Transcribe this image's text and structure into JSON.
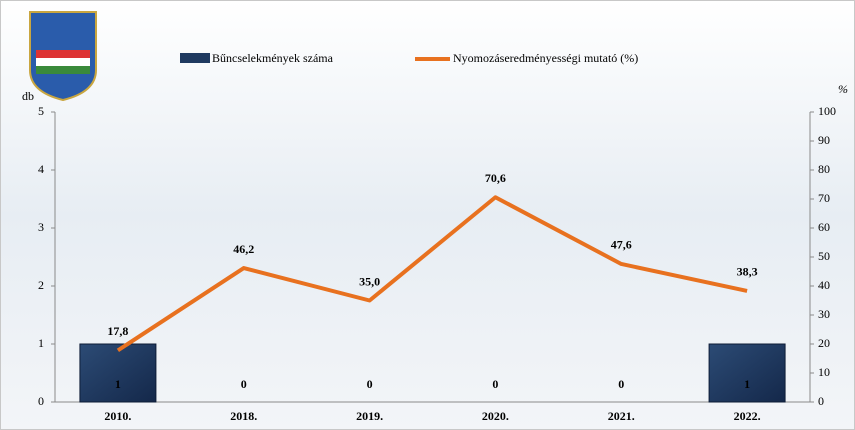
{
  "chart_data": {
    "type": "combo",
    "categories": [
      "2010.",
      "2018.",
      "2019.",
      "2020.",
      "2021.",
      "2022."
    ],
    "series": [
      {
        "name": "Bűncselekmények száma",
        "type": "bar",
        "color": "#1f3a60",
        "axis": "y",
        "values": [
          1,
          0,
          0,
          0,
          0,
          1
        ]
      },
      {
        "name": "Nyomozáseredményességi mutató (%)",
        "type": "line",
        "color": "#e8711f",
        "axis": "y2",
        "values": [
          17.8,
          46.2,
          35.0,
          70.6,
          47.6,
          38.3
        ],
        "value_labels": [
          "17,8",
          "46,2",
          "35,0",
          "70,6",
          "47,6",
          "38,3"
        ]
      }
    ],
    "ylabel": "db",
    "y2label": "%",
    "ylim": [
      0,
      5
    ],
    "yticks": [
      0,
      1,
      2,
      3,
      4,
      5
    ],
    "y2lim": [
      0,
      100
    ],
    "y2ticks": [
      0,
      10,
      20,
      30,
      40,
      50,
      60,
      70,
      80,
      90,
      100
    ],
    "legend": "top"
  }
}
